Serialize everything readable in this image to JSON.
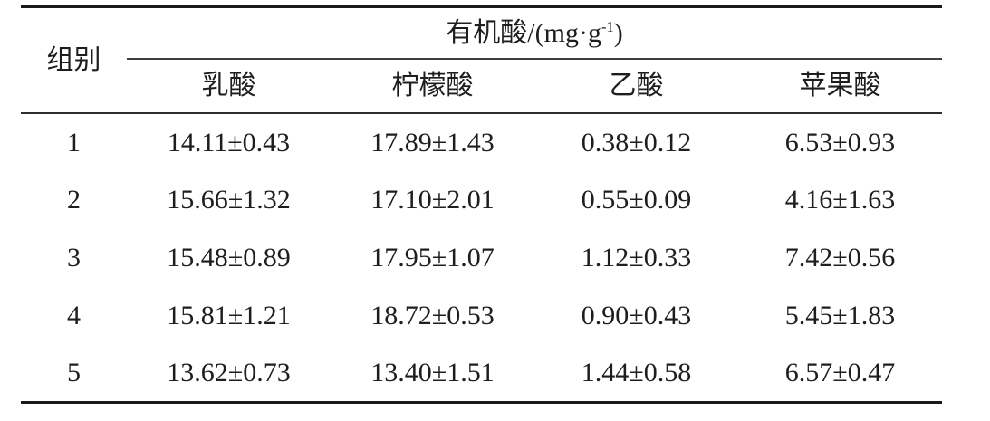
{
  "table": {
    "group_header": "组别",
    "organic_acid_header": {
      "prefix": "有机酸/(mg·g",
      "superscript": "-1",
      "suffix": ")"
    },
    "columns": [
      "乳酸",
      "柠檬酸",
      "乙酸",
      "苹果酸"
    ],
    "rows": [
      {
        "group": "1",
        "values": [
          "14.11±0.43",
          "17.89±1.43",
          "0.38±0.12",
          "6.53±0.93"
        ]
      },
      {
        "group": "2",
        "values": [
          "15.66±1.32",
          "17.10±2.01",
          "0.55±0.09",
          "4.16±1.63"
        ]
      },
      {
        "group": "3",
        "values": [
          "15.48±0.89",
          "17.95±1.07",
          "1.12±0.33",
          "7.42±0.56"
        ]
      },
      {
        "group": "4",
        "values": [
          "15.81±1.21",
          "18.72±0.53",
          "0.90±0.43",
          "5.45±1.83"
        ]
      },
      {
        "group": "5",
        "values": [
          "13.62±0.73",
          "13.40±1.51",
          "1.44±0.58",
          "6.57±0.47"
        ]
      }
    ]
  },
  "chart_data": {
    "type": "table",
    "title": "有机酸/(mg·g-1)",
    "row_header_label": "组别",
    "columns": [
      "乳酸",
      "柠檬酸",
      "乙酸",
      "苹果酸"
    ],
    "rows": [
      {
        "group": "1",
        "乳酸": "14.11±0.43",
        "柠檬酸": "17.89±1.43",
        "乙酸": "0.38±0.12",
        "苹果酸": "6.53±0.93"
      },
      {
        "group": "2",
        "乳酸": "15.66±1.32",
        "柠檬酸": "17.10±2.01",
        "乙酸": "0.55±0.09",
        "苹果酸": "4.16±1.63"
      },
      {
        "group": "3",
        "乳酸": "15.48±0.89",
        "柠檬酸": "17.95±1.07",
        "乙酸": "1.12±0.33",
        "苹果酸": "7.42±0.56"
      },
      {
        "group": "4",
        "乳酸": "15.81±1.21",
        "柠檬酸": "18.72±0.53",
        "乙酸": "0.90±0.43",
        "苹果酸": "5.45±1.83"
      },
      {
        "group": "5",
        "乳酸": "13.62±0.73",
        "柠檬酸": "13.40±1.51",
        "乙酸": "1.44±0.58",
        "苹果酸": "6.57±0.47"
      }
    ]
  },
  "colors": {
    "text": "#1e1e1e",
    "rule_heavy": "#1a1a1a",
    "rule_light": "#3f3f3f",
    "background": "#ffffff"
  }
}
